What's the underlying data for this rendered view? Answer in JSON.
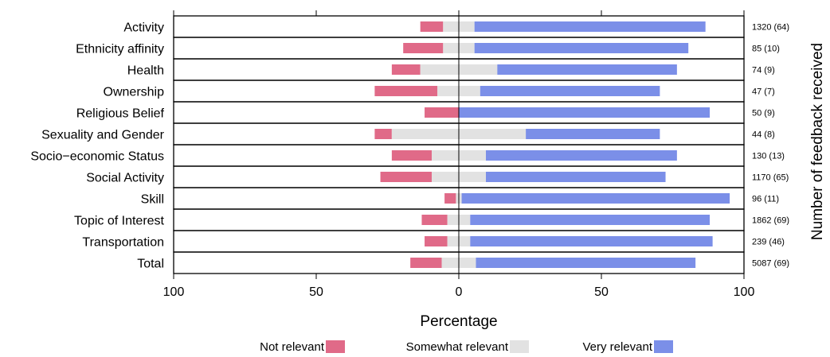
{
  "chart_data": {
    "type": "bar",
    "orientation": "horizontal-diverging",
    "xlabel": "Percentage",
    "y2label": "Number of feedback received",
    "xlim": [
      -100,
      100
    ],
    "xticks": [
      -100,
      -50,
      0,
      50,
      100
    ],
    "xtick_labels": [
      "100",
      "50",
      "0",
      "50",
      "100"
    ],
    "categories": [
      "Activity",
      "Ethnicity affinity",
      "Health",
      "Ownership",
      "Religious Belief",
      "Sexuality and Gender",
      "Socio−economic Status",
      "Social Activity",
      "Skill",
      "Topic of Interest",
      "Transportation",
      "Total"
    ],
    "counts": [
      "1320 (64)",
      "85 (10)",
      "74 (9)",
      "47 (7)",
      "50 (9)",
      "44 (8)",
      "130 (13)",
      "1170 (65)",
      "96 (11)",
      "1862 (69)",
      "239 (46)",
      "5087 (69)"
    ],
    "series": [
      {
        "name": "Not relevant",
        "color": "#e06a88",
        "values": [
          8,
          14,
          10,
          22,
          12,
          6,
          14,
          18,
          4,
          9,
          8,
          11
        ]
      },
      {
        "name": "Somewhat relevant",
        "color": "#e2e2e2",
        "values": [
          11,
          11,
          27,
          15,
          0,
          47,
          19,
          19,
          2,
          8,
          8,
          12
        ]
      },
      {
        "name": "Very relevant",
        "color": "#7b8fe8",
        "values": [
          81,
          75,
          63,
          63,
          88,
          47,
          67,
          63,
          94,
          84,
          85,
          77
        ]
      }
    ],
    "legend": {
      "position": "bottom",
      "items": [
        "Not relevant",
        "Somewhat relevant",
        "Very relevant"
      ]
    },
    "grid": false
  }
}
